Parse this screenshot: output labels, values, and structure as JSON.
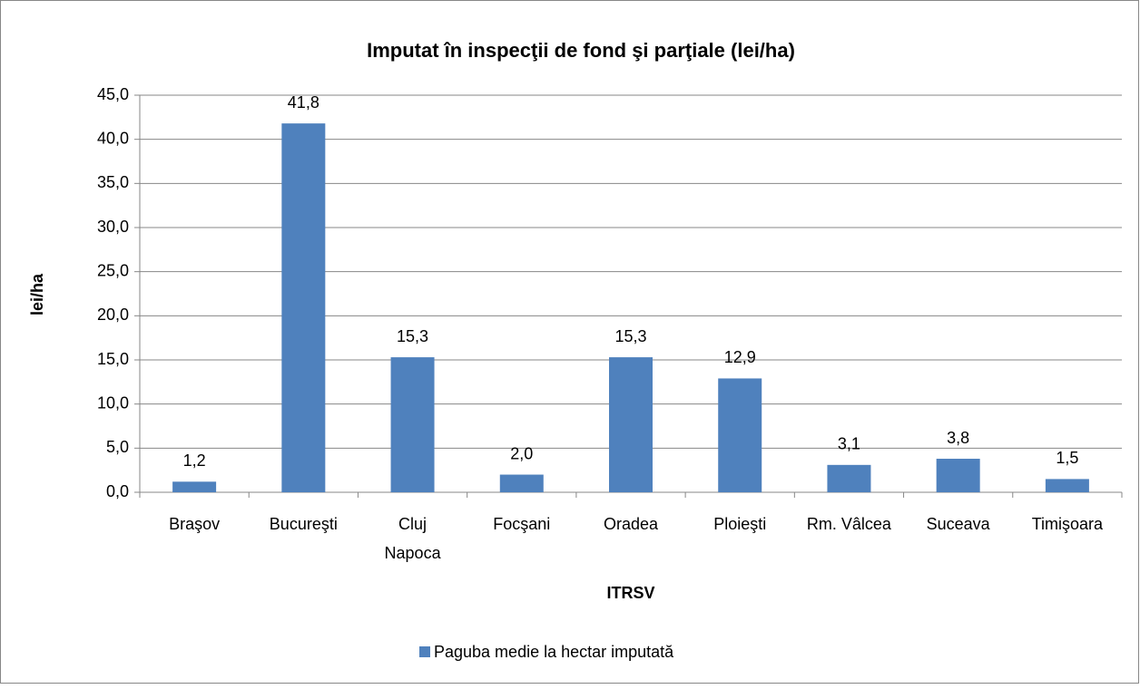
{
  "chart_data": {
    "type": "bar",
    "title": "Imputat în inspecţii de fond şi parţiale (lei/ha)",
    "x_label": "ITRSV",
    "y_label": "lei/ha",
    "categories": [
      "Braşov",
      "Bucureşti",
      "Cluj Napoca",
      "Focşani",
      "Oradea",
      "Ploieşti",
      "Rm. Vâlcea",
      "Suceava",
      "Timişoara"
    ],
    "series": [
      {
        "name": "Paguba medie la hectar imputată",
        "color": "#4f81bd",
        "values": [
          1.2,
          41.8,
          15.3,
          2.0,
          15.3,
          12.9,
          3.1,
          3.8,
          1.5
        ],
        "value_labels": [
          "1,2",
          "41,8",
          "15,3",
          "2,0",
          "15,3",
          "12,9",
          "3,1",
          "3,8",
          "1,5"
        ]
      }
    ],
    "ylim": [
      0,
      45
    ],
    "yticks": [
      {
        "value": 0,
        "label": "0,0"
      },
      {
        "value": 5,
        "label": "5,0"
      },
      {
        "value": 10,
        "label": "10,0"
      },
      {
        "value": 15,
        "label": "15,0"
      },
      {
        "value": 20,
        "label": "20,0"
      },
      {
        "value": 25,
        "label": "25,0"
      },
      {
        "value": 30,
        "label": "30,0"
      },
      {
        "value": 35,
        "label": "35,0"
      },
      {
        "value": 40,
        "label": "40,0"
      },
      {
        "value": 45,
        "label": "45,0"
      }
    ],
    "grid": true,
    "legend": "bottom"
  }
}
